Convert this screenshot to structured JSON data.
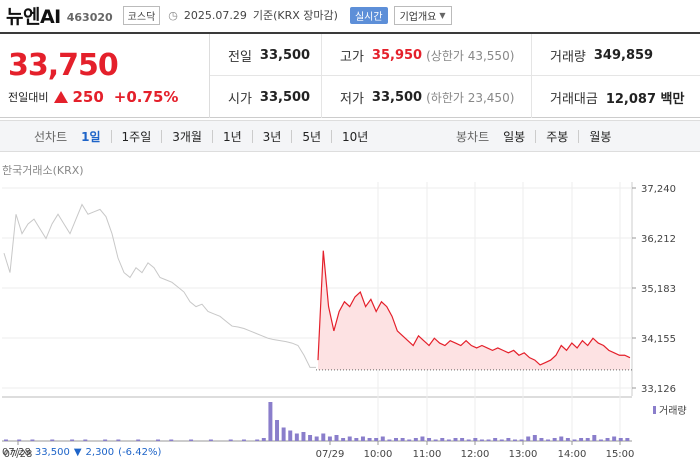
{
  "header": {
    "name": "뉴엔AI",
    "code": "463020",
    "market": "코스닥",
    "date": "2025.07.29",
    "basis": "기준(KRX 장마감)",
    "realtime_label": "실시간",
    "company_label": "기업개요"
  },
  "quote": {
    "price": "33,750",
    "change_label": "전일대비",
    "change": "250",
    "change_pct": "+0.75%"
  },
  "stats": {
    "prev_label": "전일",
    "prev": "33,500",
    "high_label": "고가",
    "high": "35,950",
    "upper_limit": "(상한가 43,550)",
    "volume_label": "거래량",
    "volume": "349,859",
    "open_label": "시가",
    "open": "33,500",
    "low_label": "저가",
    "low": "33,500",
    "lower_limit": "(하한가 23,450)",
    "amount_label": "거래대금",
    "amount": "12,087 백만"
  },
  "period": {
    "title": "선차트",
    "items": [
      "1일",
      "1주일",
      "3개월",
      "1년",
      "3년",
      "5년",
      "10년"
    ],
    "active": "1일",
    "candle_title": "봉차트",
    "candle_items": [
      "일봉",
      "주봉",
      "월봉"
    ]
  },
  "chart_source": "한국거래소(KRX)",
  "chart_data": {
    "type": "line",
    "y_ticks": [
      "37,240",
      "36,212",
      "35,183",
      "34,155",
      "33,126"
    ],
    "ylim": [
      33126,
      37240
    ],
    "x_ticks": [
      "07/28",
      "07/29",
      "10:00",
      "11:00",
      "12:00",
      "13:00",
      "14:00",
      "15:00"
    ],
    "base_price": 33500,
    "series": [
      {
        "name": "07/28",
        "color": "#c8c8c8",
        "values": [
          35900,
          35500,
          36700,
          36300,
          36500,
          36600,
          36400,
          36200,
          36500,
          36700,
          36500,
          36300,
          36600,
          36900,
          36700,
          36750,
          36800,
          36650,
          36300,
          35800,
          35500,
          35400,
          35600,
          35500,
          35700,
          35600,
          35400,
          35350,
          35300,
          35200,
          35100,
          34900,
          34800,
          34850,
          34700,
          34650,
          34600,
          34500,
          34400,
          34380,
          34350,
          34300,
          34250,
          34200,
          34150,
          34120,
          34100,
          34080,
          34050,
          34000,
          33800,
          33550,
          33550
        ]
      },
      {
        "name": "07/29",
        "color": "#e4202b",
        "values": [
          33700,
          35950,
          34800,
          34300,
          34700,
          34900,
          34800,
          35000,
          35100,
          34800,
          34950,
          34700,
          34900,
          34800,
          34600,
          34300,
          34200,
          34100,
          34000,
          34200,
          34100,
          34000,
          34150,
          34050,
          34000,
          34100,
          34050,
          34000,
          34100,
          34000,
          33950,
          34000,
          33950,
          33900,
          33950,
          33900,
          33850,
          33900,
          33800,
          33850,
          33750,
          33700,
          33600,
          33650,
          33700,
          33800,
          34000,
          33900,
          34050,
          33950,
          34100,
          34000,
          34150,
          34050,
          34000,
          33900,
          33850,
          33800,
          33800,
          33750
        ]
      }
    ],
    "volume_legend": "거래량",
    "volume_series": [
      1,
      0,
      1,
      0,
      1,
      0,
      0,
      1,
      0,
      0,
      1,
      0,
      1,
      0,
      0,
      1,
      0,
      1,
      0,
      0,
      1,
      0,
      0,
      1,
      0,
      1,
      0,
      0,
      1,
      0,
      0,
      1,
      0,
      0,
      1,
      0,
      1,
      0,
      1,
      2,
      26,
      14,
      9,
      7,
      5,
      6,
      4,
      3,
      5,
      3,
      4,
      2,
      3,
      2,
      3,
      2,
      2,
      3,
      1,
      2,
      2,
      1,
      2,
      3,
      2,
      1,
      2,
      1,
      2,
      2,
      1,
      2,
      1,
      1,
      2,
      1,
      2,
      1,
      1,
      3,
      4,
      2,
      1,
      2,
      3,
      2,
      1,
      2,
      2,
      4,
      1,
      2,
      3,
      2,
      2
    ]
  },
  "footer": {
    "date": "07/28",
    "price": "33,500",
    "change": "2,300",
    "pct": "(-6.42%)"
  }
}
